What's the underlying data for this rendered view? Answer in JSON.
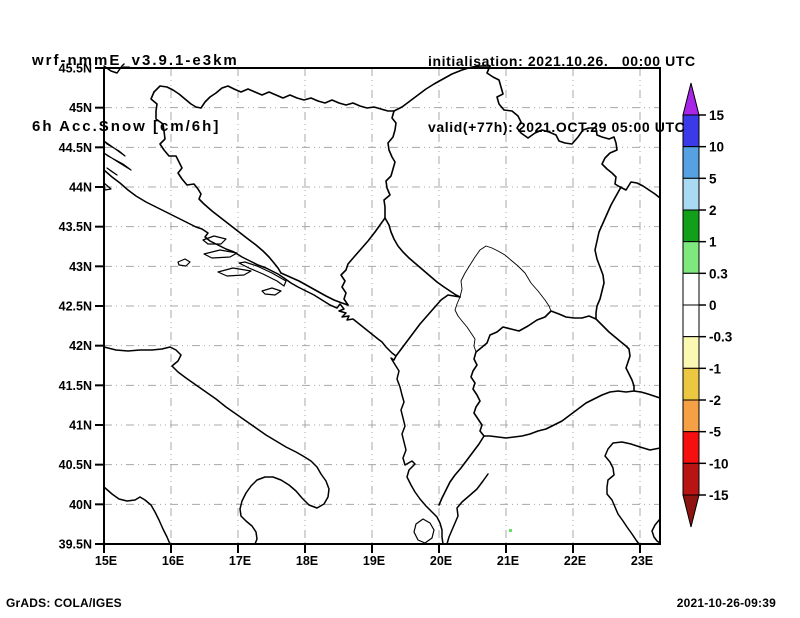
{
  "header": {
    "model": "wrf-nmmE_v3.9.1-e3km",
    "variable": "6h Acc.Snow [cm/6h]",
    "initialisation": "initialisation: 2021.10.26.   00:00 UTC",
    "valid": "valid(+77h): 2021.OCT.29 05:00 UTC"
  },
  "axes": {
    "lat_labels": [
      "45.5N",
      "45N",
      "44.5N",
      "44N",
      "43.5N",
      "43N",
      "42.5N",
      "42N",
      "41.5N",
      "41N",
      "40.5N",
      "40N",
      "39.5N"
    ],
    "lon_labels": [
      "15E",
      "16E",
      "17E",
      "18E",
      "19E",
      "20E",
      "21E",
      "22E",
      "23E"
    ]
  },
  "colorbar": {
    "tick_labels": [
      "15",
      "10",
      "5",
      "2",
      "1",
      "0.3",
      "0",
      "-0.3",
      "-1",
      "-2",
      "-5",
      "-10",
      "-15"
    ],
    "segment_colors": [
      "#3a3ae8",
      "#55a1e2",
      "#a9d9f3",
      "#12a01a",
      "#7ee87e",
      "#ffffff",
      "#ffffff",
      "#fbf8b4",
      "#ecc742",
      "#f5a044",
      "#f50f0f",
      "#b81414"
    ],
    "above_color": "#a826e8",
    "below_color": "#8e1412"
  },
  "map": {
    "snow_spot_color": "#66e066"
  },
  "footer": {
    "left": "GrADS: COLA/IGES",
    "right": "2021-10-26-09:39"
  }
}
